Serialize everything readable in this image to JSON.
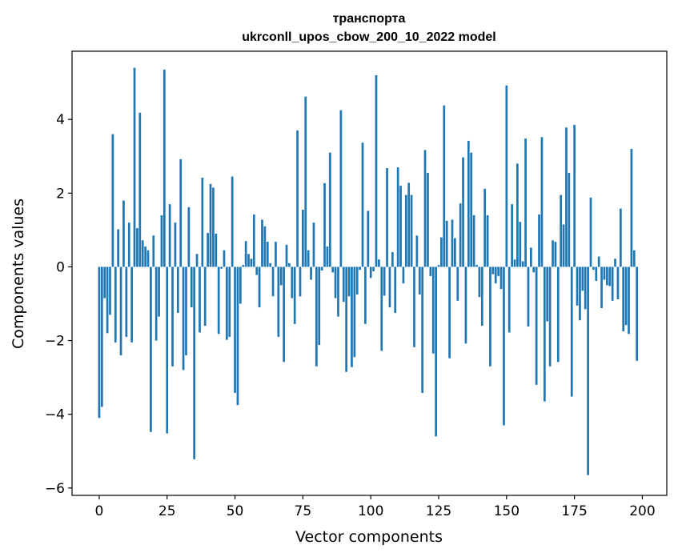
{
  "chart_data": {
    "type": "bar",
    "title_line1": "транспорта",
    "title_line2": "ukrconll_upos_cbow_200_10_2022 model",
    "xlabel": "Vector components",
    "ylabel": "Components values",
    "xlim": [
      -10,
      209
    ],
    "ylim": [
      -6.2,
      5.85
    ],
    "xticks": [
      0,
      25,
      50,
      75,
      100,
      125,
      150,
      175,
      200
    ],
    "xtick_labels": [
      "0",
      "25",
      "50",
      "75",
      "100",
      "125",
      "150",
      "175",
      "200"
    ],
    "yticks": [
      4,
      2,
      0,
      -2,
      -4,
      -6
    ],
    "ytick_labels": [
      "4",
      "2",
      "0",
      "−2",
      "−4",
      "−6"
    ],
    "bar_color": "#1f77b4",
    "values": [
      -4.1,
      -3.8,
      -0.85,
      -1.8,
      -1.3,
      3.6,
      -2.05,
      1.02,
      -2.4,
      1.8,
      -1.9,
      1.2,
      -2.05,
      5.4,
      1.05,
      4.18,
      0.72,
      0.55,
      0.45,
      -4.48,
      0.85,
      -2.0,
      -1.35,
      1.4,
      5.35,
      -4.52,
      1.7,
      -2.7,
      1.2,
      -1.25,
      2.92,
      -2.8,
      -2.4,
      1.62,
      -1.1,
      -5.22,
      0.35,
      -1.78,
      2.42,
      -1.6,
      0.92,
      2.25,
      2.15,
      0.9,
      -1.82,
      -0.05,
      0.45,
      -1.98,
      -1.9,
      2.45,
      -3.42,
      -3.75,
      -1.0,
      0.05,
      0.7,
      0.35,
      0.22,
      1.42,
      -0.22,
      -1.1,
      1.28,
      1.1,
      0.68,
      0.1,
      -0.8,
      0.68,
      -1.9,
      -0.5,
      -2.58,
      0.6,
      0.1,
      -0.85,
      -1.55,
      3.7,
      -0.8,
      1.55,
      4.62,
      0.45,
      -0.35,
      1.2,
      -2.7,
      -2.12,
      -0.1,
      2.27,
      0.55,
      3.1,
      -0.15,
      -0.85,
      -1.35,
      4.25,
      -0.95,
      -2.85,
      -0.8,
      -2.72,
      -2.45,
      -0.75,
      -0.08,
      3.37,
      -1.55,
      1.52,
      -0.3,
      -0.12,
      5.2,
      0.2,
      -2.28,
      -0.78,
      2.68,
      -1.1,
      0.4,
      -1.25,
      2.7,
      2.2,
      -0.45,
      1.95,
      2.28,
      1.95,
      -2.18,
      0.85,
      -0.75,
      -3.42,
      3.17,
      2.55,
      -0.25,
      -2.35,
      -4.6,
      0.05,
      0.8,
      4.38,
      1.25,
      -2.48,
      1.28,
      0.78,
      -0.92,
      1.72,
      2.97,
      -2.08,
      3.42,
      3.1,
      1.4,
      0.05,
      -0.82,
      -1.6,
      2.12,
      1.4,
      -2.7,
      -0.2,
      -0.45,
      -0.25,
      -0.6,
      -4.3,
      4.92,
      -1.78,
      1.7,
      0.2,
      2.8,
      1.22,
      0.15,
      3.48,
      -1.62,
      0.52,
      -0.15,
      -3.2,
      1.42,
      3.52,
      -3.65,
      -1.48,
      -2.7,
      0.72,
      0.68,
      -2.58,
      1.95,
      1.15,
      3.78,
      2.55,
      -3.52,
      3.85,
      -1.05,
      -1.45,
      -0.65,
      -1.15,
      -5.65,
      1.88,
      -0.08,
      -0.38,
      0.28,
      -1.12,
      -0.35,
      -0.5,
      -0.52,
      -0.92,
      0.22,
      -0.88,
      1.58,
      -1.75,
      -1.58,
      -1.82,
      3.2,
      0.45,
      -2.55
    ]
  }
}
